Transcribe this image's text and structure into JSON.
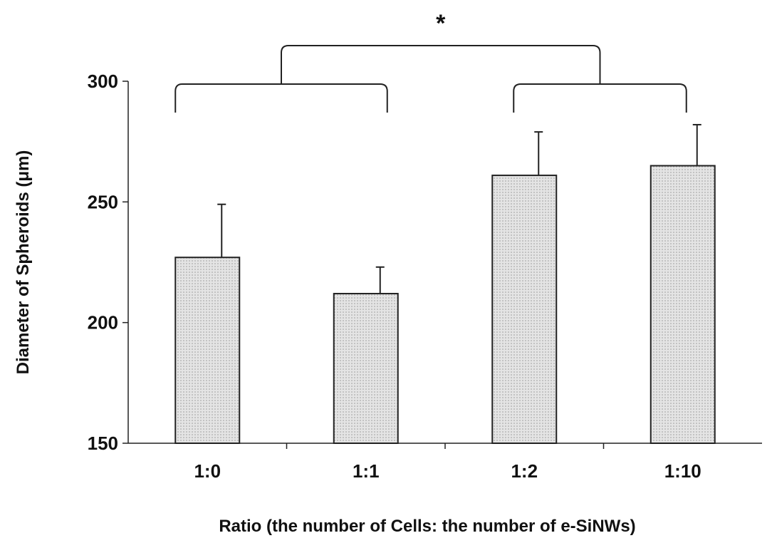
{
  "chart_data": {
    "type": "bar",
    "title": "",
    "xlabel": "Ratio (the number of Cells: the number of e-SiNWs)",
    "ylabel": "Diameter of Spheroids (μm)",
    "ylim": [
      150,
      300
    ],
    "yticks": [
      150,
      200,
      250,
      300
    ],
    "categories": [
      "1:0",
      "1:1",
      "1:2",
      "1:10"
    ],
    "values": [
      227,
      212,
      261,
      265
    ],
    "error": [
      22,
      11,
      18,
      17
    ],
    "bar_color": "#d4d4d4",
    "grid": false,
    "legend": "none",
    "annotations": [
      {
        "text": "*",
        "group_a": [
          "1:0",
          "1:1"
        ],
        "group_b": [
          "1:2",
          "1:10"
        ]
      }
    ]
  }
}
